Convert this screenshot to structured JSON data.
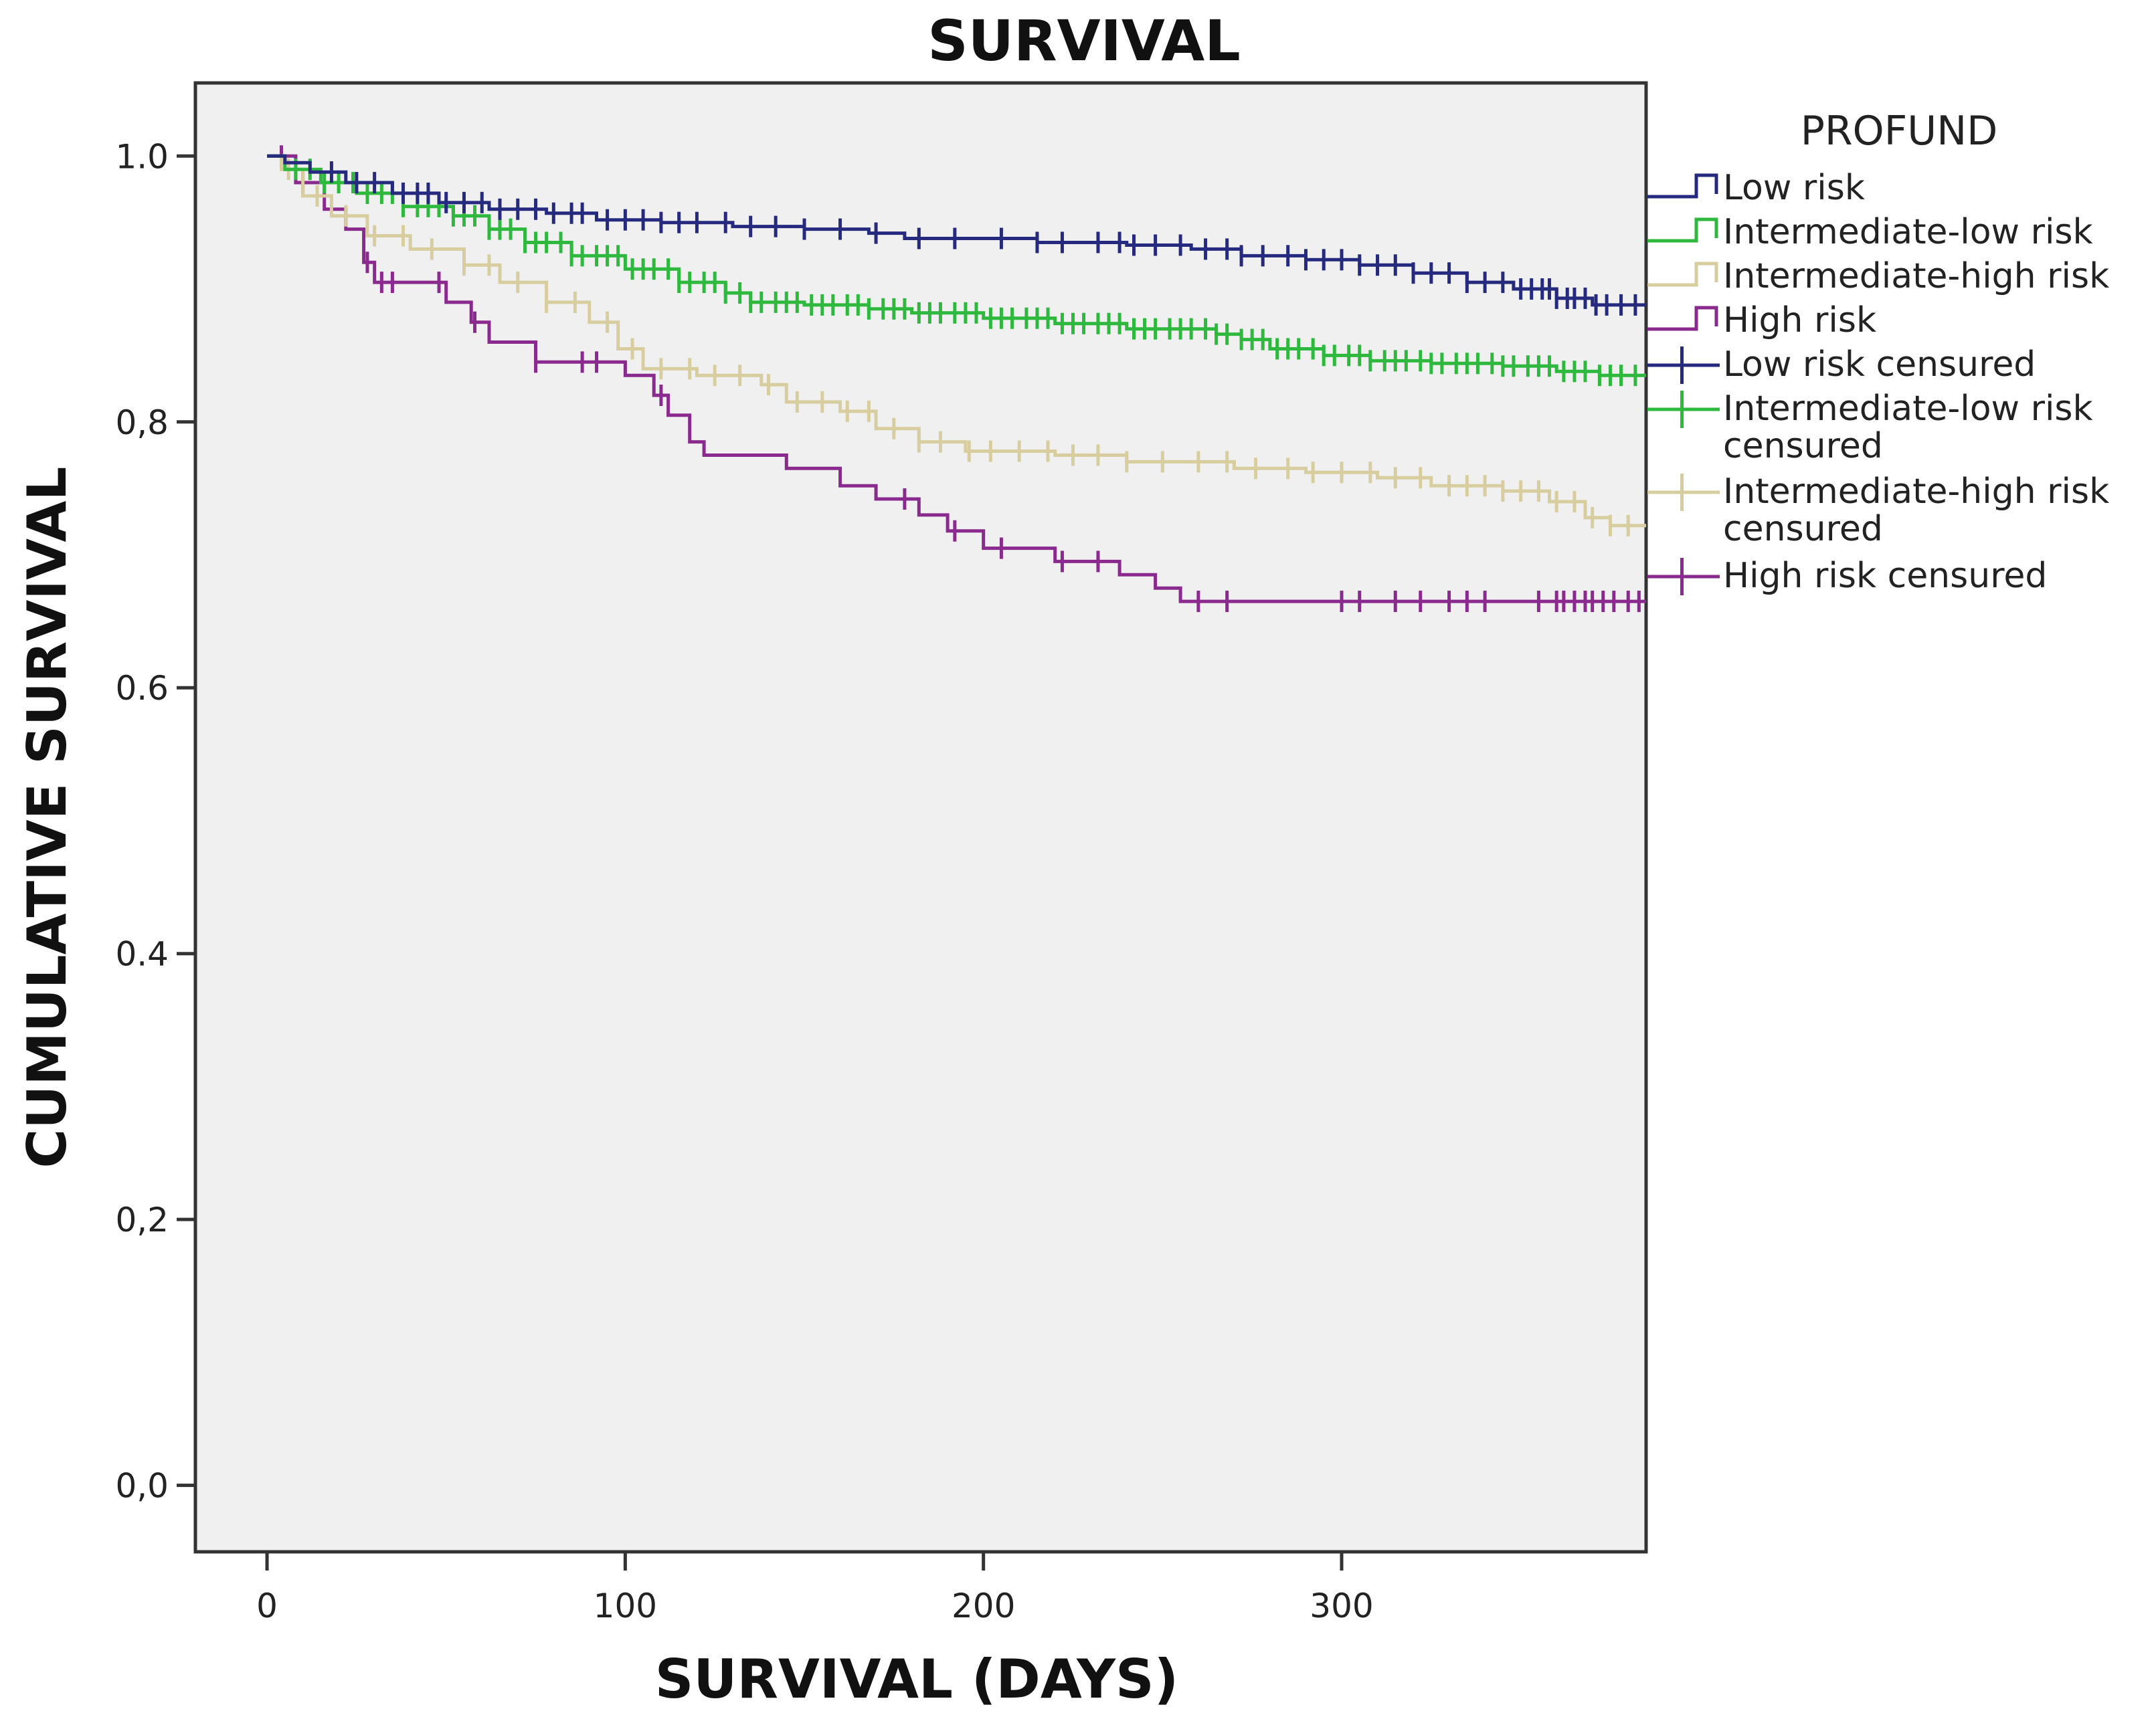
{
  "chart_data": {
    "type": "line",
    "subtype": "kaplan-meier-step",
    "title": "SURVIVAL",
    "xlabel": "SURVIVAL (DAYS)",
    "ylabel": "CUMULATIVE SURVIVAL",
    "xlim": [
      -20,
      385
    ],
    "ylim": [
      -0.05,
      1.055
    ],
    "xticks": [
      0,
      100,
      200,
      300
    ],
    "xtick_labels": [
      "0",
      "100",
      "200",
      "300"
    ],
    "yticks": [
      0.0,
      0.2,
      0.4,
      0.6,
      0.8,
      1.0
    ],
    "ytick_labels": [
      "0,0",
      "0,2",
      "0.4",
      "0.6",
      "0,8",
      "1.0"
    ],
    "legend_title": "PROFUND",
    "legend_position": "right",
    "plot_background": "#f0f0f0",
    "series": [
      {
        "name": "Low risk",
        "censored_label": "Low risk censured",
        "color": "#262a7e",
        "points": [
          [
            0,
            1.0
          ],
          [
            5,
            0.995
          ],
          [
            12,
            0.988
          ],
          [
            22,
            0.98
          ],
          [
            35,
            0.972
          ],
          [
            48,
            0.965
          ],
          [
            62,
            0.96
          ],
          [
            78,
            0.957
          ],
          [
            92,
            0.952
          ],
          [
            110,
            0.95
          ],
          [
            130,
            0.947
          ],
          [
            150,
            0.945
          ],
          [
            168,
            0.942
          ],
          [
            178,
            0.938
          ],
          [
            195,
            0.938
          ],
          [
            215,
            0.935
          ],
          [
            240,
            0.933
          ],
          [
            258,
            0.93
          ],
          [
            272,
            0.925
          ],
          [
            290,
            0.922
          ],
          [
            305,
            0.918
          ],
          [
            320,
            0.912
          ],
          [
            335,
            0.905
          ],
          [
            348,
            0.9
          ],
          [
            360,
            0.893
          ],
          [
            370,
            0.888
          ],
          [
            385,
            0.888
          ]
        ],
        "censored": [
          18,
          25,
          30,
          38,
          42,
          45,
          50,
          55,
          60,
          65,
          70,
          75,
          80,
          85,
          88,
          95,
          100,
          105,
          110,
          115,
          120,
          128,
          135,
          142,
          150,
          160,
          170,
          182,
          192,
          205,
          215,
          222,
          232,
          238,
          242,
          248,
          255,
          262,
          268,
          272,
          278,
          285,
          290,
          295,
          300,
          305,
          310,
          315,
          320,
          325,
          330,
          335,
          340,
          345,
          350,
          353,
          356,
          358,
          360,
          363,
          365,
          368,
          371,
          374,
          378,
          382
        ]
      },
      {
        "name": "Intermediate-low risk",
        "censored_label": "Intermediate-low risk\ncensured",
        "color": "#2eb83e",
        "points": [
          [
            0,
            1.0
          ],
          [
            5,
            0.99
          ],
          [
            15,
            0.98
          ],
          [
            25,
            0.972
          ],
          [
            38,
            0.962
          ],
          [
            52,
            0.955
          ],
          [
            62,
            0.945
          ],
          [
            72,
            0.935
          ],
          [
            85,
            0.925
          ],
          [
            100,
            0.915
          ],
          [
            115,
            0.905
          ],
          [
            128,
            0.897
          ],
          [
            135,
            0.89
          ],
          [
            150,
            0.888
          ],
          [
            168,
            0.885
          ],
          [
            180,
            0.882
          ],
          [
            200,
            0.878
          ],
          [
            220,
            0.874
          ],
          [
            240,
            0.87
          ],
          [
            265,
            0.866
          ],
          [
            272,
            0.862
          ],
          [
            280,
            0.855
          ],
          [
            295,
            0.85
          ],
          [
            308,
            0.846
          ],
          [
            325,
            0.844
          ],
          [
            345,
            0.842
          ],
          [
            360,
            0.838
          ],
          [
            372,
            0.835
          ],
          [
            385,
            0.835
          ]
        ],
        "censored": [
          8,
          12,
          16,
          20,
          24,
          28,
          32,
          35,
          38,
          42,
          45,
          48,
          52,
          55,
          58,
          62,
          65,
          68,
          72,
          75,
          78,
          82,
          85,
          88,
          92,
          95,
          98,
          102,
          105,
          108,
          112,
          115,
          118,
          122,
          125,
          128,
          132,
          135,
          138,
          142,
          145,
          148,
          152,
          155,
          158,
          162,
          165,
          168,
          172,
          175,
          178,
          182,
          185,
          188,
          192,
          195,
          198,
          202,
          205,
          208,
          212,
          215,
          218,
          222,
          225,
          228,
          232,
          235,
          238,
          242,
          245,
          248,
          252,
          255,
          258,
          262,
          265,
          268,
          272,
          275,
          278,
          282,
          285,
          288,
          292,
          295,
          298,
          302,
          305,
          308,
          312,
          315,
          318,
          322,
          325,
          328,
          332,
          335,
          338,
          342,
          345,
          348,
          352,
          355,
          358,
          362,
          365,
          368,
          372,
          375,
          378,
          382
        ]
      },
      {
        "name": "Intermediate-high risk",
        "censored_label": "Intermediate-high risk\ncensured",
        "color": "#d8cd9e",
        "points": [
          [
            0,
            1.0
          ],
          [
            4,
            0.99
          ],
          [
            10,
            0.97
          ],
          [
            18,
            0.955
          ],
          [
            28,
            0.94
          ],
          [
            40,
            0.93
          ],
          [
            55,
            0.918
          ],
          [
            65,
            0.905
          ],
          [
            78,
            0.89
          ],
          [
            90,
            0.875
          ],
          [
            98,
            0.855
          ],
          [
            105,
            0.84
          ],
          [
            120,
            0.835
          ],
          [
            138,
            0.828
          ],
          [
            145,
            0.815
          ],
          [
            160,
            0.808
          ],
          [
            170,
            0.795
          ],
          [
            182,
            0.785
          ],
          [
            195,
            0.778
          ],
          [
            220,
            0.775
          ],
          [
            240,
            0.77
          ],
          [
            270,
            0.765
          ],
          [
            290,
            0.762
          ],
          [
            310,
            0.758
          ],
          [
            325,
            0.752
          ],
          [
            345,
            0.748
          ],
          [
            358,
            0.74
          ],
          [
            368,
            0.728
          ],
          [
            375,
            0.722
          ],
          [
            385,
            0.722
          ]
        ],
        "censored": [
          6,
          14,
          22,
          30,
          38,
          46,
          55,
          62,
          70,
          78,
          86,
          95,
          102,
          110,
          118,
          125,
          132,
          140,
          148,
          155,
          162,
          168,
          175,
          182,
          188,
          196,
          202,
          210,
          218,
          225,
          232,
          240,
          250,
          260,
          268,
          276,
          285,
          292,
          300,
          308,
          315,
          322,
          330,
          335,
          340,
          345,
          350,
          355,
          360,
          365,
          370,
          375,
          380
        ]
      },
      {
        "name": "High risk",
        "censored_label": "High risk censured",
        "color": "#8b2a8e",
        "points": [
          [
            0,
            1.0
          ],
          [
            8,
            0.98
          ],
          [
            16,
            0.96
          ],
          [
            22,
            0.945
          ],
          [
            27,
            0.92
          ],
          [
            30,
            0.905
          ],
          [
            50,
            0.89
          ],
          [
            57,
            0.875
          ],
          [
            62,
            0.86
          ],
          [
            75,
            0.845
          ],
          [
            100,
            0.835
          ],
          [
            108,
            0.82
          ],
          [
            112,
            0.805
          ],
          [
            118,
            0.785
          ],
          [
            122,
            0.775
          ],
          [
            145,
            0.765
          ],
          [
            160,
            0.752
          ],
          [
            170,
            0.742
          ],
          [
            182,
            0.73
          ],
          [
            190,
            0.718
          ],
          [
            200,
            0.705
          ],
          [
            220,
            0.695
          ],
          [
            238,
            0.685
          ],
          [
            248,
            0.675
          ],
          [
            255,
            0.665
          ],
          [
            285,
            0.665
          ],
          [
            385,
            0.665
          ]
        ],
        "censored": [
          4,
          10,
          28,
          32,
          35,
          48,
          58,
          75,
          88,
          92,
          110,
          178,
          192,
          205,
          222,
          232,
          260,
          268,
          300,
          305,
          315,
          322,
          330,
          335,
          340,
          355,
          360,
          362,
          365,
          368,
          370,
          373,
          376,
          380,
          383
        ]
      }
    ]
  }
}
